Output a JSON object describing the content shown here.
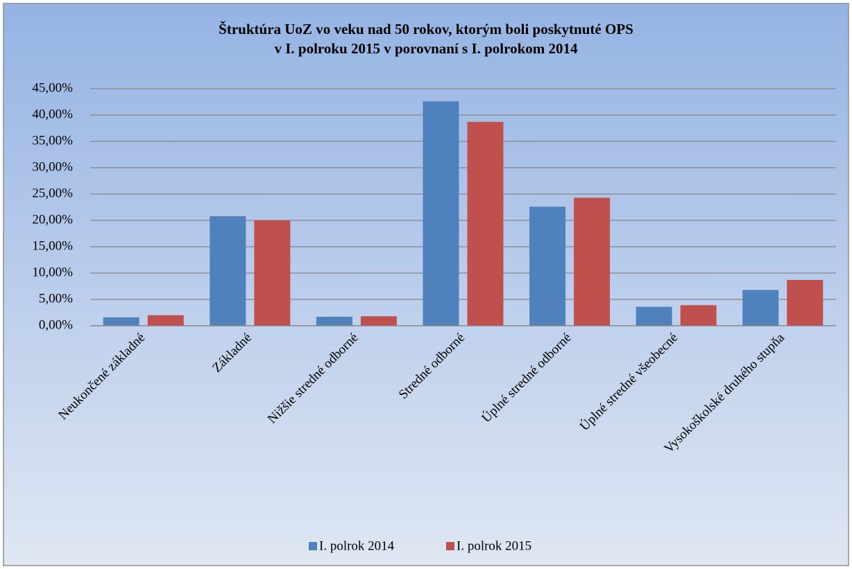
{
  "chart_data": {
    "type": "bar",
    "title": [
      "Štruktúra UoZ vo veku nad 50 rokov, ktorým boli poskytnuté OPS",
      "v I. polroku 2015 v porovnaní s I. polrokom 2014"
    ],
    "categories": [
      "Neukončené základné",
      "Základné",
      "Nižšie stredné odborné",
      "Stredné odborné",
      "Úplné stredné odborné",
      "Úplné stredné všeobecné",
      "Vysokoškolské druhého stupňa"
    ],
    "series": [
      {
        "name": "I. polrok 2014",
        "color": "#4f81bd",
        "values": [
          1.6,
          20.8,
          1.7,
          42.6,
          22.6,
          3.6,
          6.8
        ]
      },
      {
        "name": "I. polrok 2015",
        "color": "#c0504d",
        "values": [
          2.0,
          20.0,
          1.8,
          38.7,
          24.3,
          3.9,
          8.7
        ]
      }
    ],
    "ylim": [
      0,
      45
    ],
    "yticks": [
      {
        "value": 0,
        "label": "0,00%"
      },
      {
        "value": 5,
        "label": "5,00%"
      },
      {
        "value": 10,
        "label": "10,00%"
      },
      {
        "value": 15,
        "label": "15,00%"
      },
      {
        "value": 20,
        "label": "20,00%"
      },
      {
        "value": 25,
        "label": "25,00%"
      },
      {
        "value": 30,
        "label": "30,00%"
      },
      {
        "value": 35,
        "label": "35,00%"
      },
      {
        "value": 40,
        "label": "40,00%"
      },
      {
        "value": 45,
        "label": "45,00%"
      }
    ],
    "grid": true,
    "legend": "bottom"
  }
}
